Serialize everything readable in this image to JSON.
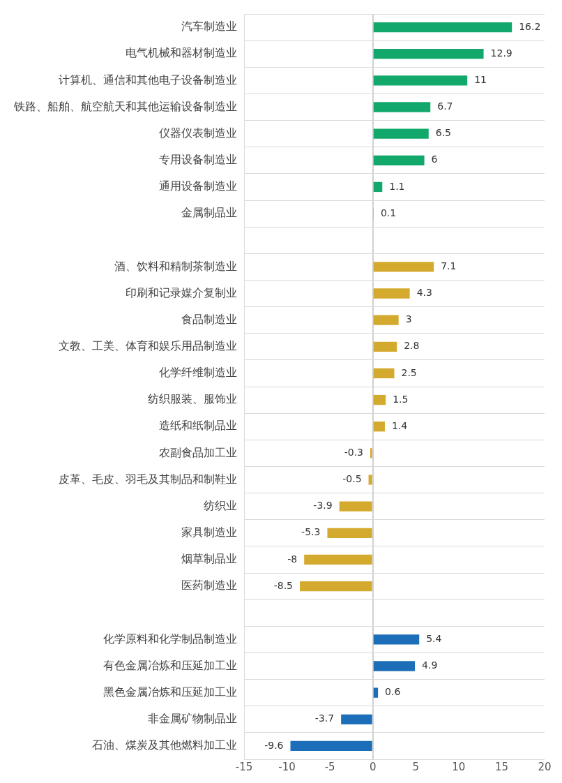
{
  "chart_data": {
    "type": "bar",
    "orientation": "horizontal",
    "categories": [
      "汽车制造业",
      "电气机械和器材制造业",
      "计算机、通信和其他电子设备制造业",
      "铁路、船舶、航空航天和其他运输设备制造业",
      "仪器仪表制造业",
      "专用设备制造业",
      "通用设备制造业",
      "金属制品业",
      null,
      "酒、饮料和精制茶制造业",
      "印刷和记录媒介复制业",
      "食品制造业",
      "文教、工美、体育和娱乐用品制造业",
      "化学纤维制造业",
      "纺织服装、服饰业",
      "造纸和纸制品业",
      "农副食品加工业",
      "皮革、毛皮、羽毛及其制品和制鞋业",
      "纺织业",
      "家具制造业",
      "烟草制品业",
      "医药制造业",
      null,
      "化学原料和化学制品制造业",
      "有色金属冶炼和压延加工业",
      "黑色金属冶炼和压延加工业",
      "非金属矿物制品业",
      "石油、煤炭及其他燃料加工业"
    ],
    "values": [
      16.2,
      12.9,
      11,
      6.7,
      6.5,
      6,
      1.1,
      0.1,
      null,
      7.1,
      4.3,
      3,
      2.8,
      2.5,
      1.5,
      1.4,
      -0.3,
      -0.5,
      -3.9,
      -5.3,
      -8,
      -8.5,
      null,
      5.4,
      4.9,
      0.6,
      -3.7,
      -9.6
    ],
    "colors": [
      "#13a86b",
      "#13a86b",
      "#13a86b",
      "#13a86b",
      "#13a86b",
      "#13a86b",
      "#13a86b",
      "#13a86b",
      null,
      "#d4aa2e",
      "#d4aa2e",
      "#d4aa2e",
      "#d4aa2e",
      "#d4aa2e",
      "#d4aa2e",
      "#d4aa2e",
      "#d4aa2e",
      "#d4aa2e",
      "#d4aa2e",
      "#d4aa2e",
      "#d4aa2e",
      "#d4aa2e",
      null,
      "#1c6eb8",
      "#1c6eb8",
      "#1c6eb8",
      "#1c6eb8",
      "#1c6eb8"
    ],
    "xlim": [
      -15,
      20
    ],
    "xticks": [
      -15,
      -10,
      -5,
      0,
      5,
      10,
      15,
      20
    ],
    "data_labels": true,
    "grid": "y",
    "legend": false
  }
}
